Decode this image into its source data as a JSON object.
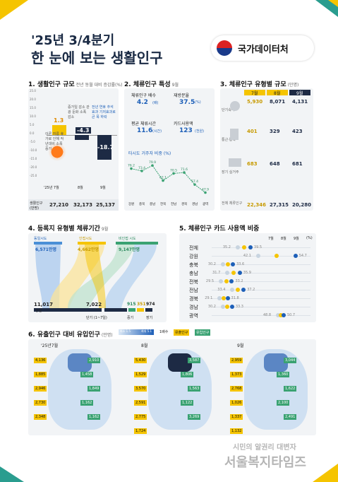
{
  "header": {
    "subtitle": "'25년 3/4분기",
    "title": "한 눈에 보는 생활인구",
    "org": "국가데이터처"
  },
  "s1": {
    "title": "1. 생활인구 규모",
    "note": "전년 동월 대비 증감률(%)",
    "yticks": [
      "25.0",
      "20.0",
      "15.0",
      "10.0",
      "5.0",
      "0.0",
      "-5.0",
      "-10.0",
      "-15.0",
      "-20.0",
      "-25.0"
    ],
    "values": [
      "1.3",
      "-4.3",
      "-18.7"
    ],
    "annotations": [
      "이른 여름 휴가로 인해 작년대비 소폭 증가",
      "증가일 감소 관광 둔화 소폭 감소",
      "전년 연휴 추석효과 기저효과로 큰 폭 하락"
    ],
    "xcats": [
      "'25년 7월",
      "8월",
      "9월"
    ],
    "row_label": "생활인구 (만명)",
    "row_values": [
      "27,210",
      "32,173",
      "25,137"
    ]
  },
  "s2": {
    "title": "2. 체류인구 특성",
    "unit": "9월",
    "cards": [
      {
        "label": "체류인구 배수",
        "value": "4.2",
        "unit": "(배)"
      },
      {
        "label": "재방문율",
        "value": "37.5",
        "unit": "(%)"
      },
      {
        "label": "평균 체류시간",
        "value": "11.6",
        "unit": "(시간)"
      },
      {
        "label": "카드사용액",
        "value": "123",
        "unit": "(천원)"
      }
    ],
    "subtitle": "타시도 거주자 비중 (%)",
    "line": [
      "76.2",
      "73.4",
      "79.9",
      "62.1",
      "70.5",
      "71.6",
      "57.4",
      "47.9"
    ],
    "regions": [
      "강원",
      "충북",
      "충남",
      "전북",
      "전남",
      "경북",
      "경남",
      "광역"
    ]
  },
  "s3": {
    "title": "3. 체류인구 유형별 규모",
    "unit": "(만명)",
    "months": [
      "7월",
      "8월",
      "9월"
    ],
    "rows": [
      {
        "label": "단기숙박",
        "values": [
          "5,930",
          "8,071",
          "4,131"
        ]
      },
      {
        "label": "통근·통학",
        "values": [
          "401",
          "329",
          "423"
        ]
      },
      {
        "label": "장기 실거주",
        "values": [
          "683",
          "648",
          "681"
        ]
      },
      {
        "label": "전체 체류인구",
        "values": [
          "22,346",
          "27,315",
          "20,280"
        ]
      }
    ]
  },
  "s4": {
    "title": "4. 등록지 유형별 체류기간",
    "unit": "9월",
    "sources": [
      {
        "label": "동일시도",
        "value": "6,571만명"
      },
      {
        "label": "인접시도",
        "value": "4,662만명"
      },
      {
        "label": "비인접 시도",
        "value": "9,147만명"
      }
    ],
    "targets": [
      {
        "label": "당일",
        "value": "11,017"
      },
      {
        "label": "단기 (1~7일)",
        "value": "7,022"
      },
      {
        "label": "중기",
        "value": "915"
      },
      {
        "label": "",
        "value": "351"
      },
      {
        "label": "장기",
        "value": "974"
      }
    ]
  },
  "s5": {
    "title": "5. 체류인구 카드 사용액 비중",
    "legend": [
      "7월",
      "8월",
      "9월",
      "(%)"
    ],
    "rows": [
      {
        "region": "전체",
        "a": "35.2",
        "b": "39.5"
      },
      {
        "region": "강원",
        "a": "42.1",
        "b": "54.7"
      },
      {
        "region": "충북",
        "a": "30.2",
        "b": "33.6"
      },
      {
        "region": "충남",
        "a": "31.7",
        "b": "35.9"
      },
      {
        "region": "전북",
        "a": "29.5",
        "b": "33.2"
      },
      {
        "region": "전남",
        "a": "33.4",
        "b": "37.2"
      },
      {
        "region": "경북",
        "a": "29.1",
        "b": "31.8"
      },
      {
        "region": "경남",
        "a": "30.2",
        "b": "33.3"
      },
      {
        "region": "광역",
        "a": "48.8",
        "b": "50.7"
      }
    ]
  },
  "s6": {
    "title": "6. 유출인구 대비 유입인구",
    "unit": "(만명)",
    "legend": [
      "유출인구",
      "유입인구"
    ],
    "legend_scale": [
      "최소 1.5",
      "최대 5.1"
    ],
    "legend_label": "1배수",
    "maps": [
      {
        "month": "'25년7월",
        "boxes": [
          "4,136",
          "2,910",
          "1,885",
          "1,458",
          "2,946",
          "1,849",
          "2,730",
          "1,162",
          "2,348",
          "1,162"
        ]
      },
      {
        "month": "8월",
        "boxes": [
          "5,430",
          "3,587",
          "1,529",
          "1,806",
          "3,570",
          "1,563",
          "2,591",
          "1,122",
          "2,775",
          "3,269",
          "1,724"
        ]
      },
      {
        "month": "9월",
        "boxes": [
          "2,959",
          "3,044",
          "1,373",
          "1,360",
          "2,768",
          "1,622",
          "1,026",
          "2,100",
          "1,337",
          "2,491",
          "1,132"
        ]
      }
    ]
  },
  "watermark": {
    "line1": "시민의 알권리 대변자",
    "line2": "서울복지타임즈"
  }
}
